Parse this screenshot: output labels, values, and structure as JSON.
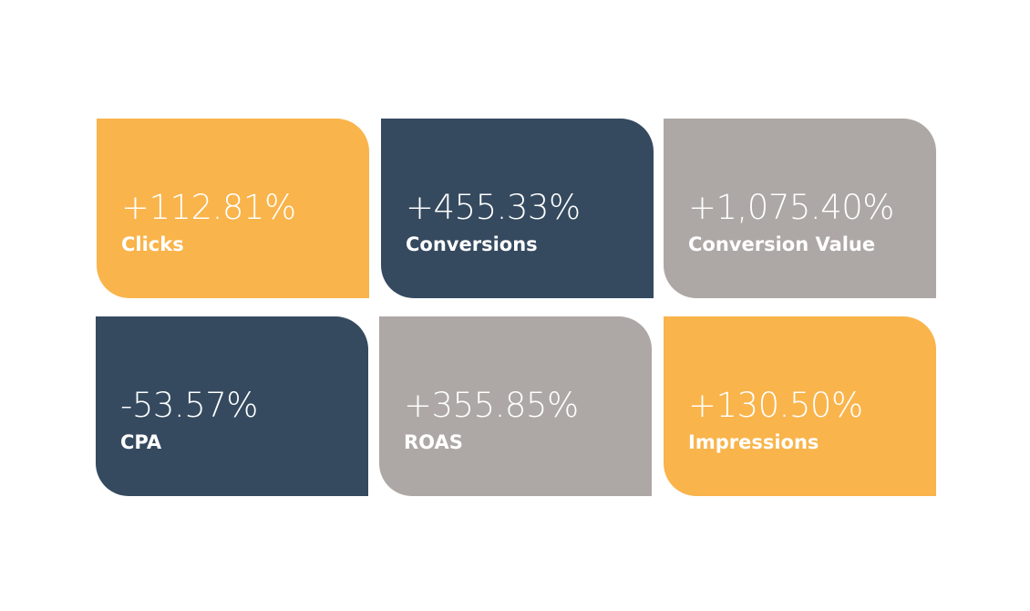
{
  "cards": [
    {
      "value": "+112.81%",
      "label": "Clicks",
      "color": "#f9b44b"
    },
    {
      "value": "+455.33%",
      "label": "Conversions",
      "color": "#354a5f"
    },
    {
      "value": "+1,075.40%",
      "label": "Conversion Value",
      "color": "#ada8a5"
    },
    {
      "value": "-53.57%",
      "label": "CPA",
      "color": "#354a5f"
    },
    {
      "value": "+355.85%",
      "label": "ROAS",
      "color": "#ada8a5"
    },
    {
      "value": "+130.50%",
      "label": "Impressions",
      "color": "#f9b44b"
    }
  ]
}
